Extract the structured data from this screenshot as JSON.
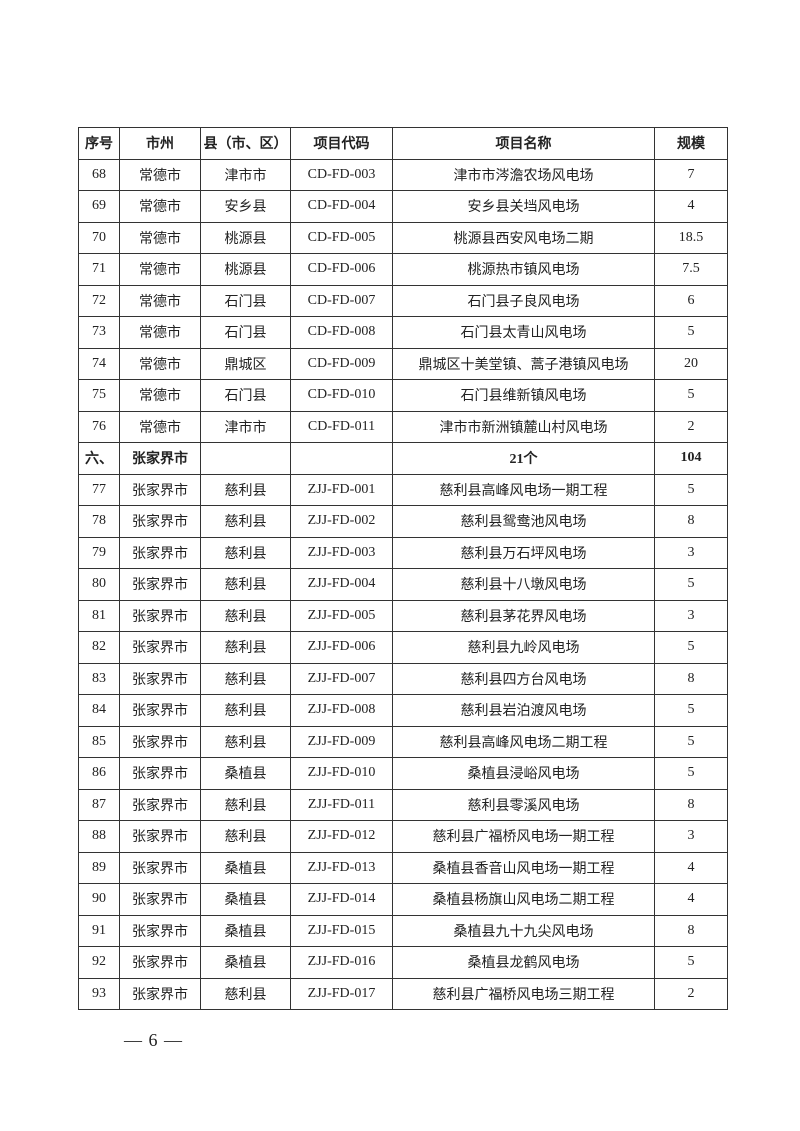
{
  "headers": [
    "序号",
    "市州",
    "县（市、区）",
    "项目代码",
    "项目名称",
    "规模"
  ],
  "rows": [
    [
      "68",
      "常德市",
      "津市市",
      "CD-FD-003",
      "津市市涔澹农场风电场",
      "7"
    ],
    [
      "69",
      "常德市",
      "安乡县",
      "CD-FD-004",
      "安乡县关垱风电场",
      "4"
    ],
    [
      "70",
      "常德市",
      "桃源县",
      "CD-FD-005",
      "桃源县西安风电场二期",
      "18.5"
    ],
    [
      "71",
      "常德市",
      "桃源县",
      "CD-FD-006",
      "桃源热市镇风电场",
      "7.5"
    ],
    [
      "72",
      "常德市",
      "石门县",
      "CD-FD-007",
      "石门县子良风电场",
      "6"
    ],
    [
      "73",
      "常德市",
      "石门县",
      "CD-FD-008",
      "石门县太青山风电场",
      "5"
    ],
    [
      "74",
      "常德市",
      "鼎城区",
      "CD-FD-009",
      "鼎城区十美堂镇、蒿子港镇风电场",
      "20"
    ],
    [
      "75",
      "常德市",
      "石门县",
      "CD-FD-010",
      "石门县维新镇风电场",
      "5"
    ],
    [
      "76",
      "常德市",
      "津市市",
      "CD-FD-011",
      "津市市新洲镇麓山村风电场",
      "2"
    ]
  ],
  "section": {
    "index": "六、",
    "city": "张家界市",
    "count": "21个",
    "scale": "104"
  },
  "rows2": [
    [
      "77",
      "张家界市",
      "慈利县",
      "ZJJ-FD-001",
      "慈利县高峰风电场一期工程",
      "5"
    ],
    [
      "78",
      "张家界市",
      "慈利县",
      "ZJJ-FD-002",
      "慈利县鸳鸯池风电场",
      "8"
    ],
    [
      "79",
      "张家界市",
      "慈利县",
      "ZJJ-FD-003",
      "慈利县万石坪风电场",
      "3"
    ],
    [
      "80",
      "张家界市",
      "慈利县",
      "ZJJ-FD-004",
      "慈利县十八墩风电场",
      "5"
    ],
    [
      "81",
      "张家界市",
      "慈利县",
      "ZJJ-FD-005",
      "慈利县茅花界风电场",
      "3"
    ],
    [
      "82",
      "张家界市",
      "慈利县",
      "ZJJ-FD-006",
      "慈利县九岭风电场",
      "5"
    ],
    [
      "83",
      "张家界市",
      "慈利县",
      "ZJJ-FD-007",
      "慈利县四方台风电场",
      "8"
    ],
    [
      "84",
      "张家界市",
      "慈利县",
      "ZJJ-FD-008",
      "慈利县岩泊渡风电场",
      "5"
    ],
    [
      "85",
      "张家界市",
      "慈利县",
      "ZJJ-FD-009",
      "慈利县高峰风电场二期工程",
      "5"
    ],
    [
      "86",
      "张家界市",
      "桑植县",
      "ZJJ-FD-010",
      "桑植县浸峪风电场",
      "5"
    ],
    [
      "87",
      "张家界市",
      "慈利县",
      "ZJJ-FD-011",
      "慈利县零溪风电场",
      "8"
    ],
    [
      "88",
      "张家界市",
      "慈利县",
      "ZJJ-FD-012",
      "慈利县广福桥风电场一期工程",
      "3"
    ],
    [
      "89",
      "张家界市",
      "桑植县",
      "ZJJ-FD-013",
      "桑植县香音山风电场一期工程",
      "4"
    ],
    [
      "90",
      "张家界市",
      "桑植县",
      "ZJJ-FD-014",
      "桑植县杨旗山风电场二期工程",
      "4"
    ],
    [
      "91",
      "张家界市",
      "桑植县",
      "ZJJ-FD-015",
      "桑植县九十九尖风电场",
      "8"
    ],
    [
      "92",
      "张家界市",
      "桑植县",
      "ZJJ-FD-016",
      "桑植县龙鹤风电场",
      "5"
    ],
    [
      "93",
      "张家界市",
      "慈利县",
      "ZJJ-FD-017",
      "慈利县广福桥风电场三期工程",
      "2"
    ]
  ],
  "footer": "— 6 —"
}
